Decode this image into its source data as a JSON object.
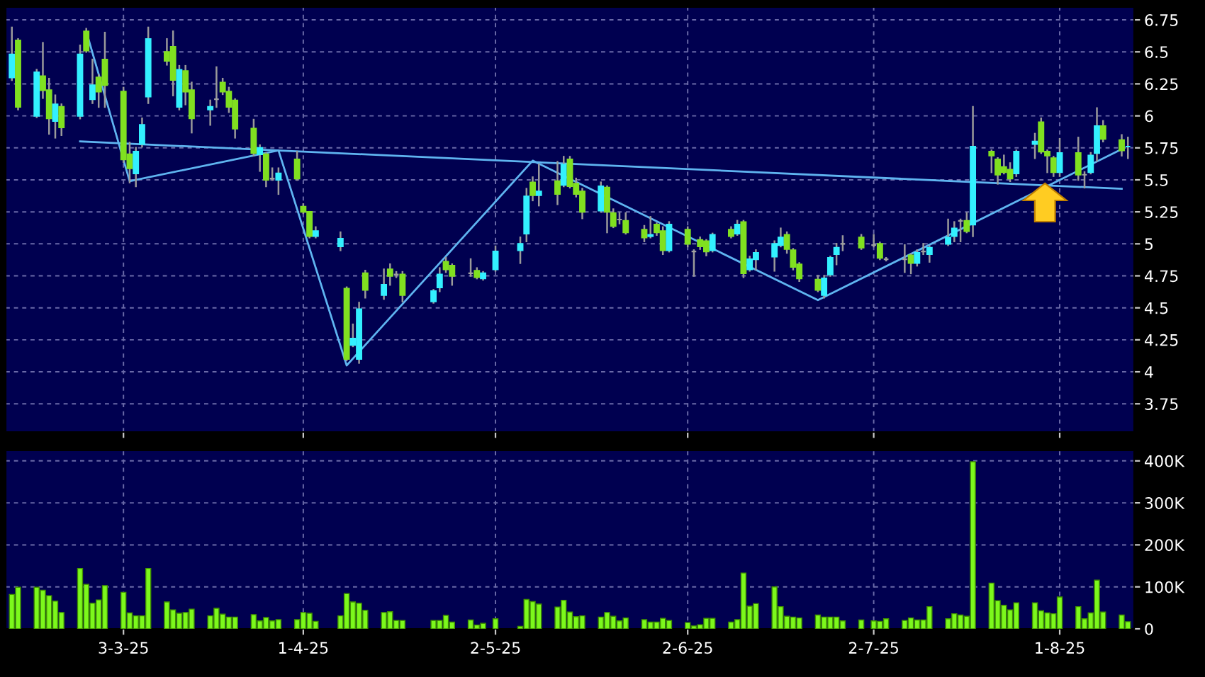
{
  "chart_data": [
    {
      "type": "candlestick",
      "x": [
        "2025-02-13",
        "2025-02-14",
        "2025-02-17",
        "2025-02-18",
        "2025-02-19",
        "2025-02-20",
        "2025-02-21",
        "2025-02-24",
        "2025-02-25",
        "2025-02-26",
        "2025-02-27",
        "2025-02-28",
        "2025-03-03",
        "2025-03-04",
        "2025-03-05",
        "2025-03-06",
        "2025-03-07",
        "2025-03-10",
        "2025-03-11",
        "2025-03-12",
        "2025-03-13",
        "2025-03-14",
        "2025-03-17",
        "2025-03-18",
        "2025-03-19",
        "2025-03-20",
        "2025-03-21",
        "2025-03-24",
        "2025-03-25",
        "2025-03-26",
        "2025-03-27",
        "2025-03-28",
        "2025-03-31",
        "2025-04-01",
        "2025-04-02",
        "2025-04-03",
        "2025-04-07",
        "2025-04-08",
        "2025-04-09",
        "2025-04-10",
        "2025-04-11",
        "2025-04-14",
        "2025-04-15",
        "2025-04-16",
        "2025-04-17",
        "2025-04-22",
        "2025-04-23",
        "2025-04-24",
        "2025-04-25",
        "2025-04-28",
        "2025-04-29",
        "2025-04-30",
        "2025-05-02",
        "2025-05-06",
        "2025-05-07",
        "2025-05-08",
        "2025-05-09",
        "2025-05-12",
        "2025-05-13",
        "2025-05-14",
        "2025-05-15",
        "2025-05-16",
        "2025-05-19",
        "2025-05-20",
        "2025-05-21",
        "2025-05-22",
        "2025-05-23",
        "2025-05-26",
        "2025-05-27",
        "2025-05-28",
        "2025-05-29",
        "2025-05-30",
        "2025-06-02",
        "2025-06-03",
        "2025-06-04",
        "2025-06-05",
        "2025-06-06",
        "2025-06-09",
        "2025-06-10",
        "2025-06-11",
        "2025-06-12",
        "2025-06-13",
        "2025-06-16",
        "2025-06-17",
        "2025-06-18",
        "2025-06-19",
        "2025-06-20",
        "2025-06-23",
        "2025-06-24",
        "2025-06-25",
        "2025-06-26",
        "2025-06-27",
        "2025-06-30",
        "2025-07-02",
        "2025-07-03",
        "2025-07-04",
        "2025-07-07",
        "2025-07-08",
        "2025-07-09",
        "2025-07-10",
        "2025-07-11",
        "2025-07-14",
        "2025-07-15",
        "2025-07-16",
        "2025-07-17",
        "2025-07-18",
        "2025-07-21",
        "2025-07-22",
        "2025-07-23",
        "2025-07-24",
        "2025-07-25",
        "2025-07-28",
        "2025-07-29",
        "2025-07-30",
        "2025-07-31",
        "2025-08-01",
        "2025-08-04",
        "2025-08-05",
        "2025-08-06",
        "2025-08-07",
        "2025-08-08",
        "2025-08-11",
        "2025-08-12"
      ],
      "ohlc": [
        [
          6.3,
          6.69,
          6.28,
          6.48
        ],
        [
          6.59,
          6.6,
          6.05,
          6.07
        ],
        [
          6.0,
          6.36,
          5.99,
          6.34
        ],
        [
          6.31,
          6.57,
          6.14,
          6.2
        ],
        [
          6.2,
          6.29,
          5.86,
          5.98
        ],
        [
          5.96,
          6.16,
          5.83,
          6.09
        ],
        [
          6.07,
          6.09,
          5.85,
          5.91
        ],
        [
          6.0,
          6.55,
          5.98,
          6.48
        ],
        [
          6.66,
          6.68,
          6.5,
          6.51
        ],
        [
          6.13,
          6.44,
          6.1,
          6.24
        ],
        [
          6.3,
          6.32,
          6.07,
          6.19
        ],
        [
          6.44,
          6.65,
          6.07,
          6.24
        ],
        [
          6.19,
          6.22,
          5.64,
          5.66
        ],
        [
          5.7,
          5.79,
          5.48,
          5.59
        ],
        [
          5.55,
          5.75,
          5.45,
          5.72
        ],
        [
          5.78,
          5.98,
          5.76,
          5.93
        ],
        [
          6.15,
          6.69,
          6.1,
          6.6
        ],
        [
          6.5,
          6.6,
          6.4,
          6.43
        ],
        [
          6.54,
          6.66,
          6.16,
          6.28
        ],
        [
          6.07,
          6.39,
          6.05,
          6.36
        ],
        [
          6.35,
          6.39,
          6.09,
          6.19
        ],
        [
          6.2,
          6.26,
          5.87,
          5.98
        ],
        [
          6.05,
          6.12,
          5.93,
          6.07
        ],
        [
          6.13,
          6.38,
          6.07,
          6.13
        ],
        [
          6.26,
          6.29,
          6.17,
          6.19
        ],
        [
          6.19,
          6.22,
          6.03,
          6.07
        ],
        [
          6.12,
          6.13,
          5.83,
          5.9
        ],
        [
          5.9,
          5.97,
          5.69,
          5.71
        ],
        [
          5.7,
          5.77,
          5.57,
          5.75
        ],
        [
          5.7,
          5.71,
          5.45,
          5.5
        ],
        [
          5.51,
          5.59,
          5.5,
          5.51
        ],
        [
          5.5,
          5.59,
          5.39,
          5.55
        ],
        [
          5.66,
          5.72,
          5.5,
          5.51
        ],
        [
          5.29,
          5.31,
          5.24,
          5.25
        ],
        [
          5.25,
          5.25,
          5.05,
          5.06
        ],
        [
          5.06,
          5.13,
          5.05,
          5.1
        ],
        [
          4.98,
          5.09,
          4.95,
          5.04
        ],
        [
          4.65,
          4.66,
          4.09,
          4.1
        ],
        [
          4.21,
          4.37,
          4.2,
          4.26
        ],
        [
          4.1,
          4.54,
          4.07,
          4.49
        ],
        [
          4.77,
          4.79,
          4.58,
          4.64
        ],
        [
          4.6,
          4.8,
          4.57,
          4.68
        ],
        [
          4.8,
          4.84,
          4.68,
          4.75
        ],
        [
          4.76,
          4.78,
          4.74,
          4.76
        ],
        [
          4.76,
          4.78,
          4.55,
          4.6
        ],
        [
          4.55,
          4.64,
          4.54,
          4.63
        ],
        [
          4.66,
          4.81,
          4.63,
          4.76
        ],
        [
          4.86,
          4.89,
          4.78,
          4.8
        ],
        [
          4.83,
          4.84,
          4.68,
          4.75
        ],
        [
          4.77,
          4.88,
          4.75,
          4.77
        ],
        [
          4.79,
          4.81,
          4.73,
          4.74
        ],
        [
          4.73,
          4.78,
          4.72,
          4.77
        ],
        [
          4.8,
          4.98,
          4.79,
          4.94
        ],
        [
          4.95,
          5.05,
          4.85,
          5.0
        ],
        [
          5.08,
          5.43,
          5.02,
          5.37
        ],
        [
          5.48,
          5.52,
          5.34,
          5.38
        ],
        [
          5.38,
          5.62,
          5.3,
          5.41
        ],
        [
          5.49,
          5.64,
          5.31,
          5.39
        ],
        [
          5.46,
          5.68,
          5.45,
          5.62
        ],
        [
          5.66,
          5.68,
          5.44,
          5.45
        ],
        [
          5.47,
          5.51,
          5.37,
          5.39
        ],
        [
          5.41,
          5.43,
          5.2,
          5.25
        ],
        [
          5.26,
          5.48,
          5.25,
          5.45
        ],
        [
          5.44,
          5.45,
          5.09,
          5.25
        ],
        [
          5.24,
          5.27,
          5.13,
          5.14
        ],
        [
          5.19,
          5.24,
          5.16,
          5.19
        ],
        [
          5.18,
          5.24,
          5.08,
          5.09
        ],
        [
          5.11,
          5.14,
          5.02,
          5.05
        ],
        [
          5.06,
          5.21,
          5.05,
          5.07
        ],
        [
          5.15,
          5.16,
          5.07,
          5.09
        ],
        [
          5.1,
          5.13,
          4.92,
          4.95
        ],
        [
          4.95,
          5.17,
          4.94,
          5.15
        ],
        [
          5.11,
          5.13,
          4.98,
          5.0
        ],
        [
          4.94,
          4.95,
          4.75,
          4.94
        ],
        [
          5.03,
          5.05,
          4.96,
          4.98
        ],
        [
          5.02,
          5.03,
          4.91,
          4.94
        ],
        [
          4.95,
          5.08,
          4.94,
          5.07
        ],
        [
          5.11,
          5.13,
          5.05,
          5.06
        ],
        [
          5.08,
          5.18,
          5.07,
          5.15
        ],
        [
          5.17,
          5.18,
          4.74,
          4.77
        ],
        [
          4.8,
          4.9,
          4.79,
          4.88
        ],
        [
          4.88,
          4.95,
          4.8,
          4.93
        ],
        [
          4.9,
          5.02,
          4.79,
          5.0
        ],
        [
          4.99,
          5.12,
          4.98,
          5.05
        ],
        [
          5.07,
          5.09,
          4.93,
          4.96
        ],
        [
          4.95,
          4.96,
          4.8,
          4.82
        ],
        [
          4.84,
          4.85,
          4.71,
          4.73
        ],
        [
          4.72,
          4.75,
          4.63,
          4.64
        ],
        [
          4.6,
          4.75,
          4.58,
          4.73
        ],
        [
          4.76,
          4.9,
          4.75,
          4.89
        ],
        [
          4.92,
          5.0,
          4.84,
          4.97
        ],
        [
          5.0,
          5.06,
          4.95,
          5.0
        ],
        [
          5.05,
          5.07,
          4.96,
          4.97
        ],
        [
          4.99,
          5.07,
          4.98,
          4.99
        ],
        [
          5.0,
          5.01,
          4.88,
          4.89
        ],
        [
          4.88,
          4.89,
          4.87,
          4.88
        ],
        [
          4.88,
          4.99,
          4.78,
          4.88
        ],
        [
          4.91,
          4.92,
          4.77,
          4.85
        ],
        [
          4.85,
          4.95,
          4.83,
          4.93
        ],
        [
          4.94,
          5.0,
          4.92,
          4.94
        ],
        [
          4.92,
          4.98,
          4.86,
          4.97
        ],
        [
          5.0,
          5.19,
          4.99,
          5.05
        ],
        [
          5.06,
          5.17,
          5.02,
          5.12
        ],
        [
          5.18,
          5.19,
          5.02,
          5.18
        ],
        [
          5.18,
          5.24,
          5.09,
          5.1
        ],
        [
          5.15,
          6.07,
          5.06,
          5.76
        ],
        [
          5.72,
          5.73,
          5.56,
          5.69
        ],
        [
          5.66,
          5.67,
          5.47,
          5.54
        ],
        [
          5.6,
          5.69,
          5.55,
          5.56
        ],
        [
          5.58,
          5.63,
          5.49,
          5.51
        ],
        [
          5.55,
          5.73,
          5.53,
          5.72
        ],
        [
          5.78,
          5.86,
          5.67,
          5.8
        ],
        [
          5.95,
          5.98,
          5.71,
          5.72
        ],
        [
          5.72,
          5.73,
          5.56,
          5.69
        ],
        [
          5.67,
          5.68,
          5.53,
          5.56
        ],
        [
          5.56,
          5.82,
          5.53,
          5.71
        ],
        [
          5.71,
          5.83,
          5.5,
          5.54
        ],
        [
          5.54,
          5.56,
          5.44,
          5.54
        ],
        [
          5.56,
          5.71,
          5.55,
          5.69
        ],
        [
          5.71,
          6.06,
          5.65,
          5.92
        ],
        [
          5.92,
          5.96,
          5.8,
          5.82
        ],
        [
          5.81,
          5.85,
          5.69,
          5.73
        ],
        [
          5.76,
          5.83,
          5.67,
          5.76
        ]
      ],
      "colors": [
        "#33f0ff",
        "#80e020",
        "#33f0ff",
        "#80e020",
        "#80e020",
        "#33f0ff",
        "#80e020",
        "#33f0ff",
        "#80e020",
        "#33f0ff",
        "#80e020",
        "#80e020",
        "#80e020",
        "#80e020",
        "#33f0ff",
        "#33f0ff",
        "#33f0ff",
        "#80e020",
        "#80e020",
        "#33f0ff",
        "#80e020",
        "#80e020",
        "#33f0ff",
        "#a0a0a0",
        "#80e020",
        "#80e020",
        "#80e020",
        "#80e020",
        "#33f0ff",
        "#80e020",
        "#a0a0a0",
        "#33f0ff",
        "#80e020",
        "#80e020",
        "#80e020",
        "#33f0ff",
        "#33f0ff",
        "#80e020",
        "#33f0ff",
        "#33f0ff",
        "#80e020",
        "#33f0ff",
        "#80e020",
        "#a0a0a0",
        "#80e020",
        "#33f0ff",
        "#33f0ff",
        "#80e020",
        "#80e020",
        "#a0a0a0",
        "#80e020",
        "#33f0ff",
        "#33f0ff",
        "#33f0ff",
        "#33f0ff",
        "#80e020",
        "#33f0ff",
        "#80e020",
        "#33f0ff",
        "#80e020",
        "#80e020",
        "#80e020",
        "#33f0ff",
        "#80e020",
        "#80e020",
        "#a0a0a0",
        "#80e020",
        "#80e020",
        "#33f0ff",
        "#80e020",
        "#80e020",
        "#33f0ff",
        "#80e020",
        "#a0a0a0",
        "#80e020",
        "#80e020",
        "#33f0ff",
        "#80e020",
        "#33f0ff",
        "#80e020",
        "#33f0ff",
        "#33f0ff",
        "#33f0ff",
        "#33f0ff",
        "#80e020",
        "#80e020",
        "#80e020",
        "#80e020",
        "#33f0ff",
        "#33f0ff",
        "#33f0ff",
        "#a0a0a0",
        "#80e020",
        "#a0a0a0",
        "#80e020",
        "#a0a0a0",
        "#a0a0a0",
        "#80e020",
        "#33f0ff",
        "#a0a0a0",
        "#33f0ff",
        "#33f0ff",
        "#33f0ff",
        "#a0a0a0",
        "#80e020",
        "#33f0ff",
        "#80e020",
        "#80e020",
        "#80e020",
        "#80e020",
        "#33f0ff",
        "#33f0ff",
        "#80e020",
        "#80e020",
        "#80e020",
        "#33f0ff",
        "#80e020",
        "#a0a0a0",
        "#33f0ff",
        "#33f0ff",
        "#80e020",
        "#80e020",
        "#33f0ff"
      ],
      "series": [
        {
          "type": "line",
          "color": "#5fb4f0",
          "x": [
            "2025-02-24",
            "2025-08-11"
          ],
          "values": [
            5.8,
            5.43
          ]
        },
        {
          "type": "line",
          "color": "#5fb4f0",
          "x": [
            "2025-02-25",
            "2025-03-04",
            "2025-03-28",
            "2025-04-08",
            "2025-05-08",
            "2025-06-23",
            "2025-08-11"
          ],
          "values": [
            6.66,
            5.49,
            5.73,
            4.05,
            5.65,
            4.56,
            5.74
          ]
        }
      ],
      "xlim": [
        "2025-02-12",
        "2025-08-13"
      ],
      "xticks": [
        {
          "value": "2025-03-03",
          "label": null
        },
        {
          "value": "2025-04-01",
          "label": null
        },
        {
          "value": "2025-05-02",
          "label": null
        },
        {
          "value": "2025-06-02",
          "label": null
        },
        {
          "value": "2025-07-02",
          "label": null
        },
        {
          "value": "2025-08-01",
          "label": null
        }
      ],
      "ylim": [
        3.53,
        6.85
      ],
      "yticks": [
        3.75,
        4,
        4.25,
        4.5,
        4.75,
        5,
        5.25,
        5.5,
        5.75,
        6,
        6.25,
        6.5,
        6.75
      ],
      "tick_labels": "y",
      "grid": true
    },
    {
      "type": "bar",
      "x": [
        "2025-02-13",
        "2025-02-14",
        "2025-02-17",
        "2025-02-18",
        "2025-02-19",
        "2025-02-20",
        "2025-02-21",
        "2025-02-24",
        "2025-02-25",
        "2025-02-26",
        "2025-02-27",
        "2025-02-28",
        "2025-03-03",
        "2025-03-04",
        "2025-03-05",
        "2025-03-06",
        "2025-03-07",
        "2025-03-10",
        "2025-03-11",
        "2025-03-12",
        "2025-03-13",
        "2025-03-14",
        "2025-03-17",
        "2025-03-18",
        "2025-03-19",
        "2025-03-20",
        "2025-03-21",
        "2025-03-24",
        "2025-03-25",
        "2025-03-26",
        "2025-03-27",
        "2025-03-28",
        "2025-03-31",
        "2025-04-01",
        "2025-04-02",
        "2025-04-03",
        "2025-04-07",
        "2025-04-08",
        "2025-04-09",
        "2025-04-10",
        "2025-04-11",
        "2025-04-14",
        "2025-04-15",
        "2025-04-16",
        "2025-04-17",
        "2025-04-22",
        "2025-04-23",
        "2025-04-24",
        "2025-04-25",
        "2025-04-28",
        "2025-04-29",
        "2025-04-30",
        "2025-05-02",
        "2025-05-06",
        "2025-05-07",
        "2025-05-08",
        "2025-05-09",
        "2025-05-12",
        "2025-05-13",
        "2025-05-14",
        "2025-05-15",
        "2025-05-16",
        "2025-05-19",
        "2025-05-20",
        "2025-05-21",
        "2025-05-22",
        "2025-05-23",
        "2025-05-26",
        "2025-05-27",
        "2025-05-28",
        "2025-05-29",
        "2025-05-30",
        "2025-06-02",
        "2025-06-03",
        "2025-06-04",
        "2025-06-05",
        "2025-06-06",
        "2025-06-09",
        "2025-06-10",
        "2025-06-11",
        "2025-06-12",
        "2025-06-13",
        "2025-06-16",
        "2025-06-17",
        "2025-06-18",
        "2025-06-19",
        "2025-06-20",
        "2025-06-23",
        "2025-06-24",
        "2025-06-25",
        "2025-06-26",
        "2025-06-27",
        "2025-06-30",
        "2025-07-02",
        "2025-07-03",
        "2025-07-04",
        "2025-07-07",
        "2025-07-08",
        "2025-07-09",
        "2025-07-10",
        "2025-07-11",
        "2025-07-14",
        "2025-07-15",
        "2025-07-16",
        "2025-07-17",
        "2025-07-18",
        "2025-07-21",
        "2025-07-22",
        "2025-07-23",
        "2025-07-24",
        "2025-07-25",
        "2025-07-28",
        "2025-07-29",
        "2025-07-30",
        "2025-07-31",
        "2025-08-01",
        "2025-08-04",
        "2025-08-05",
        "2025-08-06",
        "2025-08-07",
        "2025-08-08",
        "2025-08-11",
        "2025-08-12"
      ],
      "values": [
        82,
        99,
        99,
        92,
        79,
        66,
        39,
        144,
        106,
        61,
        69,
        103,
        87,
        38,
        31,
        31,
        144,
        64,
        45,
        37,
        39,
        47,
        31,
        49,
        35,
        28,
        28,
        34,
        19,
        27,
        19,
        22,
        22,
        39,
        37,
        18,
        31,
        84,
        64,
        61,
        44,
        39,
        41,
        20,
        20,
        20,
        20,
        32,
        16,
        21,
        9,
        13,
        24,
        6,
        70,
        65,
        59,
        52,
        68,
        40,
        29,
        31,
        28,
        39,
        30,
        19,
        26,
        22,
        16,
        16,
        25,
        20,
        15,
        7,
        10,
        25,
        25,
        16,
        22,
        133,
        54,
        60,
        100,
        53,
        30,
        28,
        26,
        33,
        28,
        28,
        28,
        19,
        21,
        19,
        18,
        24,
        20,
        26,
        21,
        21,
        53,
        24,
        36,
        33,
        30,
        398,
        109,
        67,
        56,
        45,
        62,
        62,
        43,
        38,
        36,
        76,
        53,
        24,
        38,
        116,
        40,
        33,
        17
      ],
      "color": "#7cf81c",
      "xlim": [
        "2025-02-12",
        "2025-08-13"
      ],
      "xticks": [
        {
          "value": "2025-03-03",
          "label": "3-3-25"
        },
        {
          "value": "2025-04-01",
          "label": "1-4-25"
        },
        {
          "value": "2025-05-02",
          "label": "2-5-25"
        },
        {
          "value": "2025-06-02",
          "label": "2-6-25"
        },
        {
          "value": "2025-07-02",
          "label": "2-7-25"
        },
        {
          "value": "2025-08-01",
          "label": "1-8-25"
        }
      ],
      "ylim": [
        0,
        425
      ],
      "yticks": [
        0,
        {
          "value": 100,
          "label": "100K"
        },
        {
          "value": 200,
          "label": "200K"
        },
        {
          "value": 300,
          "label": "300K"
        },
        {
          "value": 400,
          "label": "400K"
        }
      ],
      "grid": true
    }
  ]
}
